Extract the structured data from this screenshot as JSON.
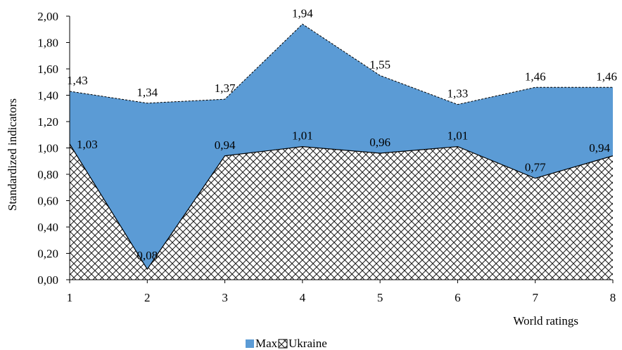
{
  "chart_data": {
    "type": "area",
    "x": [
      1,
      2,
      3,
      4,
      5,
      6,
      7,
      8
    ],
    "x_tick_labels": [
      "1",
      "2",
      "3",
      "4",
      "5",
      "6",
      "7",
      "8"
    ],
    "series": [
      {
        "name": "Max",
        "values": [
          1.43,
          1.34,
          1.37,
          1.94,
          1.55,
          1.33,
          1.46,
          1.46
        ],
        "labels": [
          "1,43",
          "1,34",
          "1,37",
          "1,94",
          "1,55",
          "1,33",
          "1,46",
          "1,46"
        ],
        "color": "#5b9bd5",
        "line_style": "dashed"
      },
      {
        "name": "Ukraine",
        "values": [
          1.03,
          0.08,
          0.94,
          1.01,
          0.96,
          1.01,
          0.77,
          0.94
        ],
        "labels": [
          "1,03",
          "0,08",
          "0,94",
          "1,01",
          "0,96",
          "1,01",
          "0,77",
          "0,94"
        ],
        "fill": "crosshatch-pattern",
        "line_style": "solid"
      }
    ],
    "ylim": [
      0,
      2
    ],
    "y_ticks": [
      0,
      0.2,
      0.4,
      0.6,
      0.8,
      1.0,
      1.2,
      1.4,
      1.6,
      1.8,
      2.0
    ],
    "y_tick_labels": [
      "0,00",
      "0,20",
      "0,40",
      "0,60",
      "0,80",
      "1,00",
      "1,20",
      "1,40",
      "1,60",
      "1,80",
      "2,00"
    ],
    "xlabel": "World ratings",
    "ylabel": "Standardized indicators",
    "title": "",
    "grid": false,
    "legend_position": "bottom"
  }
}
